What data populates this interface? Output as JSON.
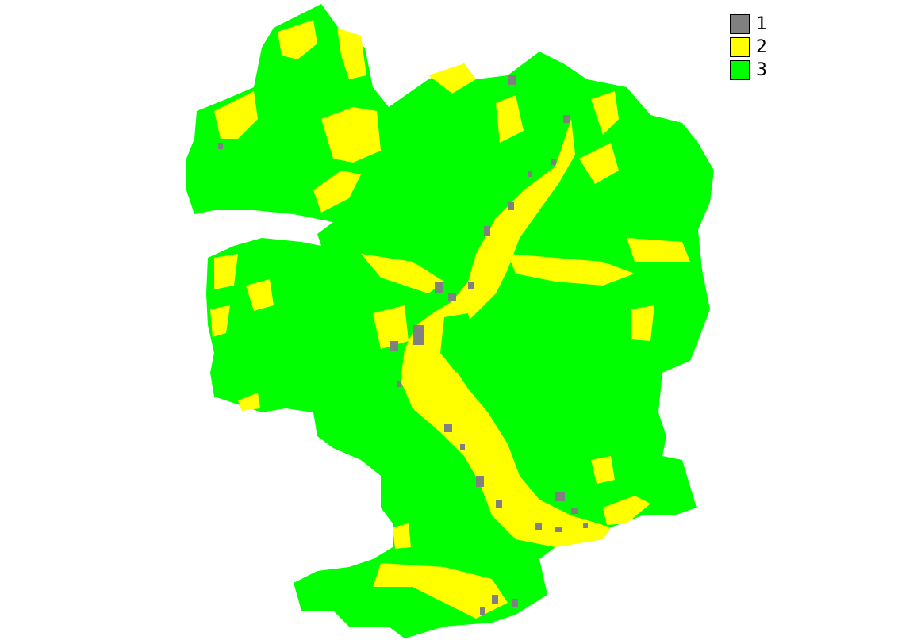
{
  "legend": {
    "items": [
      {
        "label": "1",
        "color": "#808080"
      },
      {
        "label": "2",
        "color": "#ffff00"
      },
      {
        "label": "3",
        "color": "#00ff00"
      }
    ]
  },
  "map_colors": {
    "built_up": "#808080",
    "agricultural": "#ffff00",
    "vegetation": "#00ff00",
    "background": "#ffffff"
  }
}
